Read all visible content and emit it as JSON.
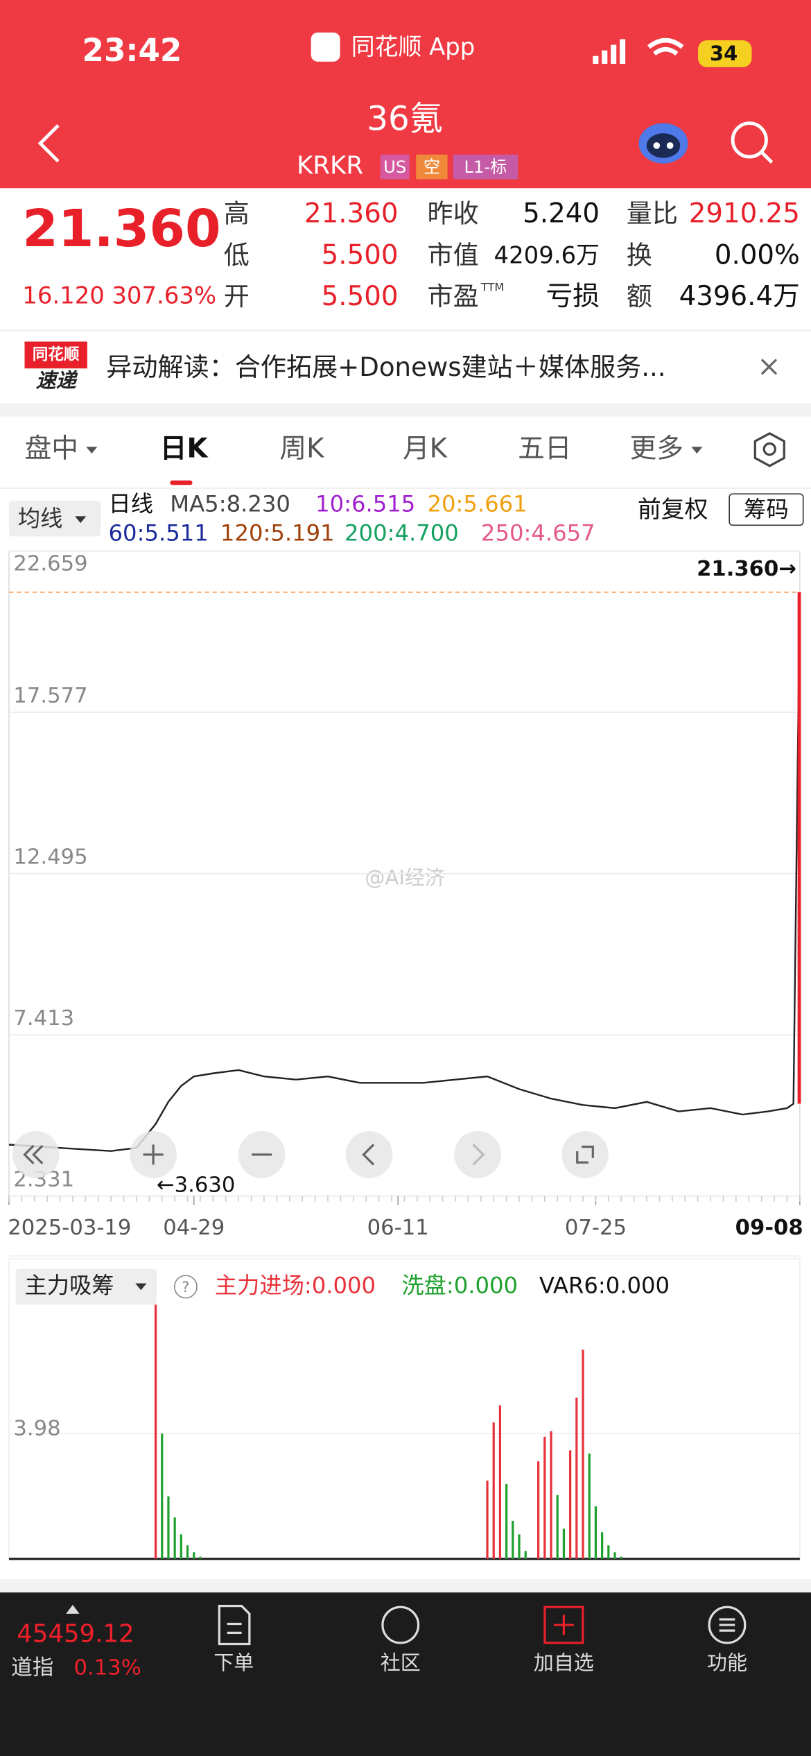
{
  "status_bar": {
    "time": "23:42",
    "app": "同花顺 App",
    "battery": "34"
  },
  "header": {
    "name": "36氪",
    "code": "KRKR",
    "tags": [
      "US",
      "空",
      "L1-标"
    ]
  },
  "quote": {
    "price": "21.360",
    "change": "16.120",
    "change_pct": "307.63%",
    "fields": [
      {
        "label": "高",
        "value": "21.360"
      },
      {
        "label": "低",
        "value": "5.500"
      },
      {
        "label": "开",
        "value": "5.500"
      },
      {
        "label": "昨收",
        "value": "5.240"
      },
      {
        "label": "市值",
        "value": "4209.6万"
      },
      {
        "label": "市盈",
        "label_sup": "TTM",
        "value": "亏损"
      },
      {
        "label": "量比",
        "value": "2910.25"
      },
      {
        "label": "换",
        "value": "0.00%"
      },
      {
        "label": "额",
        "value": "4396.4万"
      }
    ]
  },
  "news": {
    "badge": [
      "同花顺",
      "速递"
    ],
    "text": "异动解读：合作拓展+Donews建站＋媒体服务..."
  },
  "tabs": [
    "盘中",
    "日K",
    "周K",
    "月K",
    "五日",
    "更多"
  ],
  "ma_bar": {
    "selector": "均线",
    "period": "日线",
    "items": [
      "MA5:8.230",
      "10:6.515",
      "20:5.661",
      "60:5.511",
      "120:5.191",
      "200:4.700",
      "250:4.657"
    ],
    "adjust": "前复权",
    "chips": "筹码"
  },
  "watermark": "@AI经济",
  "chart_data": [
    {
      "type": "line",
      "color": "#222222",
      "xlim": [
        0,
        124
      ],
      "ylim": [
        2.331,
        22.659
      ],
      "yticks": [
        22.659,
        17.577,
        12.495,
        7.413,
        2.331
      ],
      "grid": true,
      "xticks": [
        {
          "value": 0,
          "label": "2025-03-19"
        },
        {
          "value": 29,
          "label": "04-29"
        },
        {
          "value": 61,
          "label": "06-11"
        },
        {
          "value": 92,
          "label": "07-25"
        },
        {
          "value": 124,
          "label": "09-08"
        }
      ],
      "reference_line": 21.36,
      "annotations": [
        "21.360→",
        "←3.630"
      ],
      "x": [
        0,
        4,
        8,
        12,
        16,
        20,
        23,
        25,
        27,
        29,
        32,
        36,
        40,
        45,
        50,
        55,
        60,
        65,
        70,
        75,
        80,
        85,
        90,
        95,
        100,
        105,
        110,
        115,
        119,
        122,
        123,
        124
      ],
      "values": [
        3.95,
        3.9,
        3.85,
        3.8,
        3.75,
        3.85,
        4.6,
        5.3,
        5.8,
        6.1,
        6.2,
        6.3,
        6.1,
        6.0,
        6.1,
        5.9,
        5.9,
        5.9,
        6.0,
        6.1,
        5.7,
        5.4,
        5.2,
        5.1,
        5.3,
        5.0,
        5.1,
        4.9,
        5.0,
        5.1,
        5.24,
        21.36
      ]
    },
    {
      "type": "bar",
      "title": "主力吸筹",
      "legend": [
        "主力进场:0.000",
        "洗盘:0.000",
        "VAR6:0.000"
      ],
      "xlim": [
        0,
        124
      ],
      "ylim": [
        0,
        8.97
      ],
      "yticks": [
        3.98
      ],
      "series": [
        {
          "color": "#e8313a",
          "x": [
            23,
            75,
            76,
            77,
            83,
            84,
            85,
            88,
            89,
            90
          ],
          "values": [
            8.08,
            2.49,
            4.34,
            4.88,
            3.1,
            3.88,
            4.06,
            3.45,
            5.12,
            6.65
          ]
        },
        {
          "color": "#1fa12e",
          "x": [
            24,
            25,
            26,
            27,
            28,
            29,
            30,
            78,
            79,
            80,
            81,
            86,
            87,
            91,
            92,
            93,
            94,
            95,
            96
          ],
          "values": [
            3.98,
            1.99,
            1.32,
            0.78,
            0.43,
            0.21,
            0.07,
            2.38,
            1.21,
            0.78,
            0.25,
            2.03,
            0.96,
            3.35,
            1.67,
            0.85,
            0.43,
            0.21,
            0.07
          ]
        }
      ]
    }
  ],
  "bottom": {
    "index_value": "45459.12",
    "index_name": "道指",
    "index_pct": "0.13%",
    "nav": [
      "下单",
      "社区",
      "加自选",
      "功能"
    ]
  }
}
